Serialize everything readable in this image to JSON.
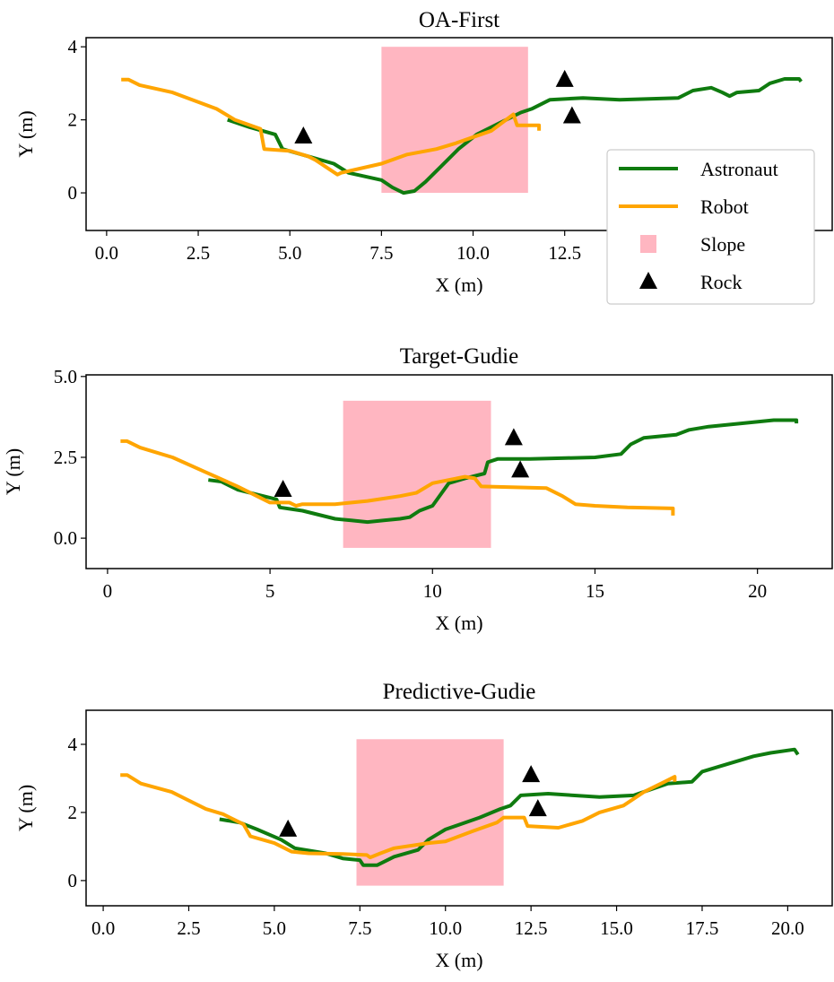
{
  "colors": {
    "astronaut": "#0f7b0f",
    "robot": "#ffa500",
    "slope": "#ffb6c1",
    "rock": "#000000"
  },
  "legend": {
    "placement": "right",
    "entries": [
      "Astronaut",
      "Robot",
      "Slope",
      "Rock"
    ]
  },
  "chart_data": [
    {
      "type": "line",
      "title": "OA-First",
      "xlabel": "X (m)",
      "ylabel": "Y (m)",
      "xlim": [
        -0.56,
        19.8
      ],
      "ylim": [
        -1.03,
        4.25
      ],
      "xticks": [
        "0.0",
        "2.5",
        "5.0",
        "7.5",
        "10.0",
        "12.5"
      ],
      "xtick_values": [
        0,
        2.5,
        5,
        7.5,
        10,
        12.5
      ],
      "yticks": [
        "0",
        "2",
        "4"
      ],
      "ytick_values": [
        0,
        2,
        4
      ],
      "slope": {
        "x": [
          7.5,
          11.5
        ],
        "y": [
          0,
          4
        ]
      },
      "rocks": [
        [
          5.37,
          1.55
        ],
        [
          12.5,
          3.1
        ],
        [
          12.7,
          2.1
        ]
      ],
      "series": [
        {
          "name": "Astronaut",
          "points": [
            [
              3.3,
              2.0
            ],
            [
              3.9,
              1.8
            ],
            [
              4.6,
              1.6
            ],
            [
              4.8,
              1.2
            ],
            [
              5.5,
              1.0
            ],
            [
              6.2,
              0.8
            ],
            [
              6.6,
              0.55
            ],
            [
              7.5,
              0.35
            ],
            [
              7.8,
              0.15
            ],
            [
              8.1,
              0.0
            ],
            [
              8.4,
              0.05
            ],
            [
              8.7,
              0.3
            ],
            [
              9.1,
              0.7
            ],
            [
              9.6,
              1.2
            ],
            [
              10.1,
              1.6
            ],
            [
              10.7,
              1.9
            ],
            [
              11.3,
              2.2
            ],
            [
              11.6,
              2.3
            ],
            [
              12.1,
              2.55
            ],
            [
              13,
              2.6
            ],
            [
              14,
              2.55
            ],
            [
              15.6,
              2.6
            ],
            [
              16.0,
              2.8
            ],
            [
              16.5,
              2.88
            ],
            [
              16.8,
              2.75
            ],
            [
              17.0,
              2.65
            ],
            [
              17.2,
              2.75
            ],
            [
              17.8,
              2.8
            ],
            [
              18.1,
              3.0
            ],
            [
              18.5,
              3.12
            ],
            [
              18.9,
              3.12
            ],
            [
              18.95,
              3.05
            ]
          ]
        },
        {
          "name": "Robot",
          "points": [
            [
              0.4,
              3.1
            ],
            [
              0.6,
              3.1
            ],
            [
              0.9,
              2.95
            ],
            [
              1.8,
              2.75
            ],
            [
              3.0,
              2.3
            ],
            [
              3.5,
              2.0
            ],
            [
              4.2,
              1.75
            ],
            [
              4.3,
              1.2
            ],
            [
              5.0,
              1.15
            ],
            [
              5.5,
              1.0
            ],
            [
              5.7,
              0.9
            ],
            [
              6.3,
              0.5
            ],
            [
              6.4,
              0.55
            ],
            [
              7.5,
              0.8
            ],
            [
              8.2,
              1.05
            ],
            [
              9.0,
              1.2
            ],
            [
              9.5,
              1.35
            ],
            [
              10.5,
              1.7
            ],
            [
              11.1,
              2.15
            ],
            [
              11.2,
              1.85
            ],
            [
              11.8,
              1.85
            ],
            [
              11.8,
              1.7
            ]
          ]
        }
      ]
    },
    {
      "type": "line",
      "title": "Target-Gudie",
      "xlabel": "X (m)",
      "ylabel": "Y (m)",
      "xlim": [
        -0.66,
        22.3
      ],
      "ylim": [
        -0.94,
        5.05
      ],
      "xticks": [
        "0",
        "5",
        "10",
        "15",
        "20"
      ],
      "xtick_values": [
        0,
        5,
        10,
        15,
        20
      ],
      "yticks": [
        "0.0",
        "2.5",
        "5.0"
      ],
      "ytick_values": [
        0,
        2.5,
        5
      ],
      "slope": {
        "x": [
          7.25,
          11.8
        ],
        "y": [
          -0.3,
          4.25
        ]
      },
      "rocks": [
        [
          5.4,
          1.5
        ],
        [
          12.5,
          3.1
        ],
        [
          12.7,
          2.1
        ]
      ],
      "series": [
        {
          "name": "Astronaut",
          "points": [
            [
              3.1,
              1.8
            ],
            [
              3.5,
              1.75
            ],
            [
              4,
              1.5
            ],
            [
              4.6,
              1.35
            ],
            [
              5.2,
              1.2
            ],
            [
              5.3,
              0.95
            ],
            [
              6,
              0.85
            ],
            [
              7,
              0.6
            ],
            [
              7.5,
              0.55
            ],
            [
              8,
              0.5
            ],
            [
              8.5,
              0.55
            ],
            [
              9,
              0.6
            ],
            [
              9.3,
              0.65
            ],
            [
              9.6,
              0.85
            ],
            [
              10,
              1.0
            ],
            [
              10.5,
              1.7
            ],
            [
              11,
              1.85
            ],
            [
              11.6,
              2.0
            ],
            [
              11.7,
              2.35
            ],
            [
              12,
              2.45
            ],
            [
              13,
              2.45
            ],
            [
              15,
              2.5
            ],
            [
              15.8,
              2.6
            ],
            [
              16.1,
              2.9
            ],
            [
              16.5,
              3.1
            ],
            [
              17.5,
              3.2
            ],
            [
              17.9,
              3.35
            ],
            [
              18.5,
              3.45
            ],
            [
              19.5,
              3.55
            ],
            [
              20.5,
              3.65
            ],
            [
              21.2,
              3.65
            ],
            [
              21.2,
              3.55
            ]
          ]
        },
        {
          "name": "Robot",
          "points": [
            [
              0.4,
              3.0
            ],
            [
              0.6,
              3.0
            ],
            [
              1,
              2.8
            ],
            [
              2,
              2.5
            ],
            [
              3,
              2.05
            ],
            [
              4,
              1.6
            ],
            [
              5,
              1.1
            ],
            [
              5.6,
              1.1
            ],
            [
              5.8,
              1.0
            ],
            [
              6,
              1.05
            ],
            [
              7,
              1.05
            ],
            [
              8,
              1.15
            ],
            [
              9,
              1.3
            ],
            [
              9.5,
              1.4
            ],
            [
              10,
              1.7
            ],
            [
              10.5,
              1.8
            ],
            [
              11,
              1.9
            ],
            [
              11.3,
              1.85
            ],
            [
              11.5,
              1.6
            ],
            [
              13.5,
              1.55
            ],
            [
              14,
              1.3
            ],
            [
              14.4,
              1.05
            ],
            [
              15,
              1.0
            ],
            [
              16,
              0.95
            ],
            [
              17.4,
              0.92
            ],
            [
              17.4,
              0.7
            ]
          ]
        }
      ]
    },
    {
      "type": "line",
      "title": "Predictive-Gudie",
      "xlabel": "X (m)",
      "ylabel": "Y (m)",
      "xlim": [
        -0.5,
        21.3
      ],
      "ylim": [
        -0.74,
        5.0
      ],
      "xticks": [
        "0.0",
        "2.5",
        "5.0",
        "7.5",
        "10.0",
        "12.5",
        "15.0",
        "17.5",
        "20.0"
      ],
      "xtick_values": [
        0,
        2.5,
        5,
        7.5,
        10,
        12.5,
        15,
        17.5,
        20
      ],
      "yticks": [
        "0",
        "2",
        "4"
      ],
      "ytick_values": [
        0,
        2,
        4
      ],
      "slope": {
        "x": [
          7.4,
          11.7
        ],
        "y": [
          -0.15,
          4.15
        ]
      },
      "rocks": [
        [
          5.4,
          1.5
        ],
        [
          12.5,
          3.1
        ],
        [
          12.7,
          2.1
        ]
      ],
      "series": [
        {
          "name": "Astronaut",
          "points": [
            [
              3.4,
              1.8
            ],
            [
              4,
              1.7
            ],
            [
              4.5,
              1.5
            ],
            [
              5.2,
              1.2
            ],
            [
              5.6,
              0.95
            ],
            [
              6.5,
              0.8
            ],
            [
              7,
              0.65
            ],
            [
              7.5,
              0.6
            ],
            [
              7.6,
              0.45
            ],
            [
              8,
              0.45
            ],
            [
              8.5,
              0.7
            ],
            [
              9.2,
              0.9
            ],
            [
              9.5,
              1.2
            ],
            [
              10,
              1.5
            ],
            [
              11,
              1.85
            ],
            [
              11.6,
              2.1
            ],
            [
              11.9,
              2.2
            ],
            [
              12.2,
              2.5
            ],
            [
              13,
              2.55
            ],
            [
              14.5,
              2.45
            ],
            [
              15.5,
              2.5
            ],
            [
              16.5,
              2.85
            ],
            [
              17.2,
              2.9
            ],
            [
              17.5,
              3.2
            ],
            [
              18,
              3.35
            ],
            [
              19,
              3.65
            ],
            [
              19.5,
              3.75
            ],
            [
              20.2,
              3.85
            ],
            [
              20.3,
              3.7
            ]
          ]
        },
        {
          "name": "Robot",
          "points": [
            [
              0.5,
              3.1
            ],
            [
              0.7,
              3.1
            ],
            [
              1.1,
              2.85
            ],
            [
              2,
              2.6
            ],
            [
              3,
              2.1
            ],
            [
              3.5,
              1.95
            ],
            [
              4.1,
              1.65
            ],
            [
              4.3,
              1.3
            ],
            [
              5,
              1.1
            ],
            [
              5.5,
              0.85
            ],
            [
              6,
              0.8
            ],
            [
              7,
              0.78
            ],
            [
              7.7,
              0.75
            ],
            [
              7.8,
              0.68
            ],
            [
              8.1,
              0.8
            ],
            [
              8.5,
              0.95
            ],
            [
              9.5,
              1.1
            ],
            [
              10,
              1.15
            ],
            [
              10.8,
              1.45
            ],
            [
              11.5,
              1.7
            ],
            [
              11.7,
              1.85
            ],
            [
              12.3,
              1.85
            ],
            [
              12.4,
              1.6
            ],
            [
              13.3,
              1.55
            ],
            [
              14,
              1.75
            ],
            [
              14.5,
              2.0
            ],
            [
              15.2,
              2.2
            ],
            [
              15.8,
              2.6
            ],
            [
              16.4,
              2.9
            ],
            [
              16.7,
              3.05
            ],
            [
              16.7,
              2.9
            ]
          ]
        }
      ]
    }
  ]
}
